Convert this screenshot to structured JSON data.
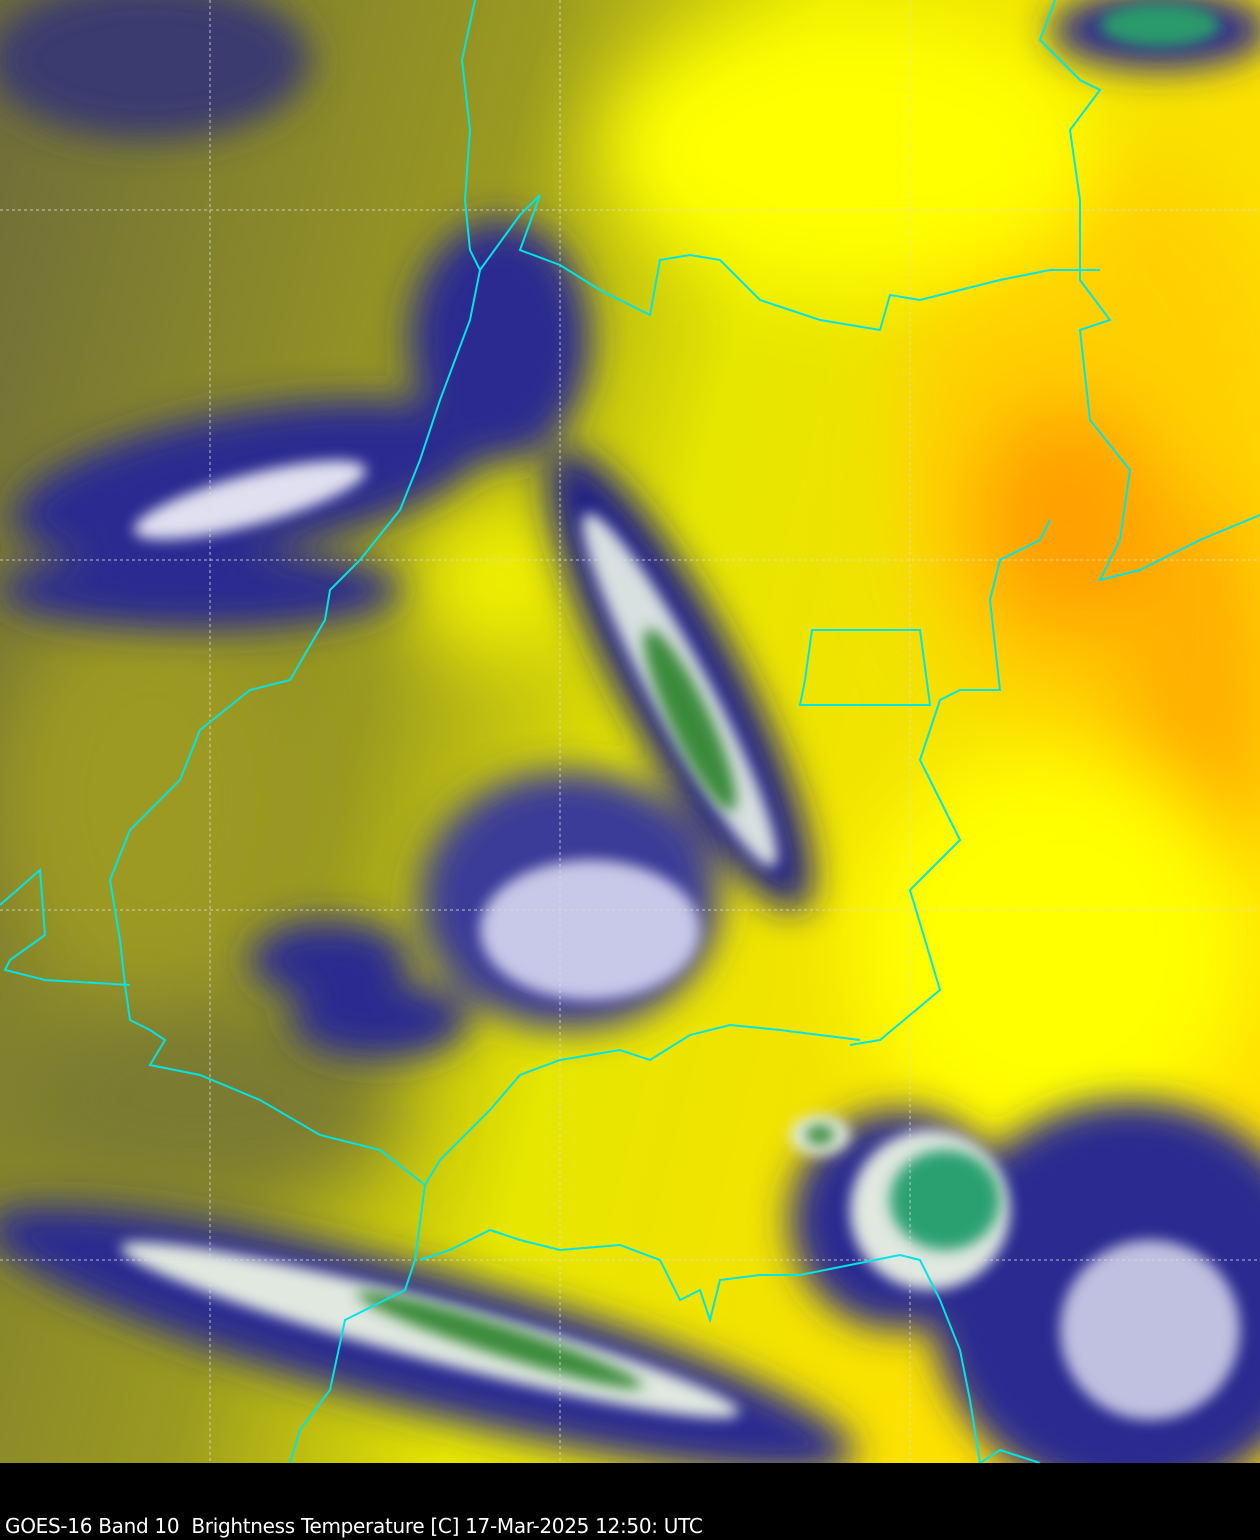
{
  "caption": "GOES-16 Band 10  Brightness Temperature [C] 17-Mar-2025 12:50: UTC",
  "colors": {
    "warm_clear": "#ffff00",
    "hot": "#ffa500",
    "mid": "#8a8a2a",
    "cold_cloud": "#1a1a80",
    "very_cold": "#ffffff",
    "coldest": "#3a8a3a",
    "border": "#00e5e5",
    "graticule": "#dddddd"
  }
}
